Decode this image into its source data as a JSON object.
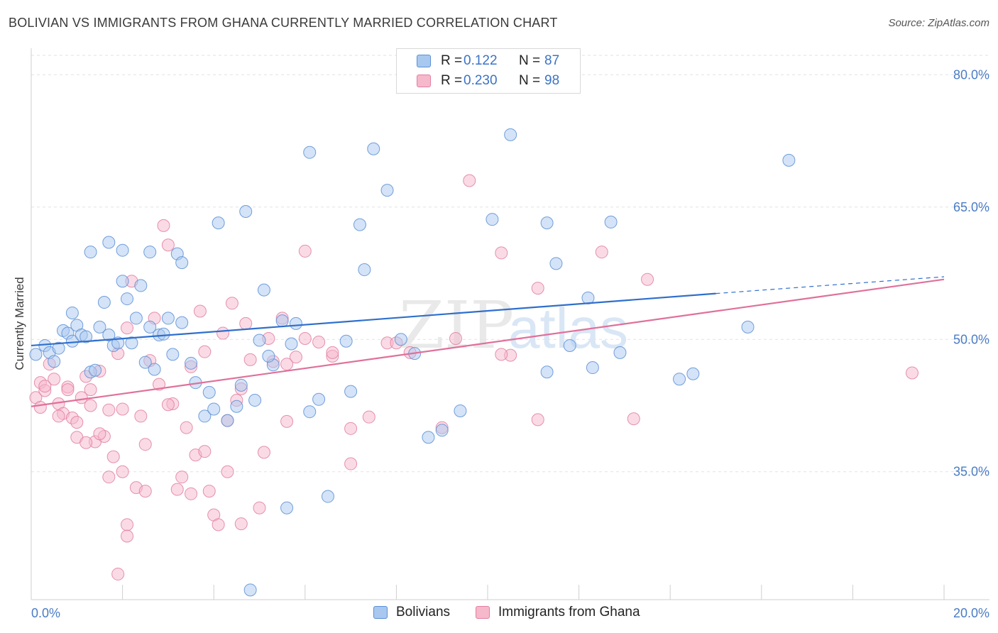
{
  "header": {
    "title": "BOLIVIAN VS IMMIGRANTS FROM GHANA CURRENTLY MARRIED CORRELATION CHART",
    "source": "Source: ZipAtlas.com"
  },
  "watermark": {
    "zip": "ZIP",
    "atlas": "atlas"
  },
  "legend": {
    "rows": [
      {
        "r_label": "R =",
        "r_value": "0.122",
        "n_label": "N =",
        "n_value": "87",
        "color": "#a9c8ef",
        "border": "#5b8fd6"
      },
      {
        "r_label": "R =",
        "r_value": "0.230",
        "n_label": "N =",
        "n_value": "98",
        "color": "#f6b8cb",
        "border": "#e27fa0"
      }
    ]
  },
  "colors": {
    "bolivian_fill": "#a9c8ef",
    "bolivian_stroke": "#5b8fd6",
    "bolivian_line": "#2f6fcc",
    "ghana_fill": "#f6b8cb",
    "ghana_stroke": "#e27fa0",
    "ghana_line": "#e0709a",
    "tick_text": "#4a7cc4",
    "grid": "#e2e2e2"
  },
  "chart_data": {
    "type": "scatter",
    "title": "BOLIVIAN VS IMMIGRANTS FROM GHANA CURRENTLY MARRIED CORRELATION CHART",
    "xlabel": "",
    "ylabel": "Currently Married",
    "xlim": [
      0,
      20
    ],
    "ylim": [
      20.5,
      83
    ],
    "x_tick_labels": [
      "0.0%",
      "20.0%"
    ],
    "x_tick_values": [
      0,
      20
    ],
    "x_minor_ticks": [
      2,
      4,
      6,
      8,
      10,
      12,
      14,
      16,
      18
    ],
    "y_tick_labels": [
      "80.0%",
      "65.0%",
      "50.0%",
      "35.0%"
    ],
    "y_tick_values": [
      80,
      65,
      50,
      35
    ],
    "grid": true,
    "legend_position": "top-center",
    "series": [
      {
        "name": "Bolivians",
        "r": 0.122,
        "n": 87,
        "trend": {
          "x0": 0,
          "y0": 49.3,
          "x1": 15.0,
          "y1": 55.2,
          "dash_to_x": 20,
          "dash_to_y": 57.1
        },
        "points": [
          [
            0.1,
            48.3
          ],
          [
            0.3,
            49.3
          ],
          [
            0.4,
            48.5
          ],
          [
            0.5,
            47.5
          ],
          [
            0.6,
            49.0
          ],
          [
            0.7,
            51.0
          ],
          [
            0.8,
            50.7
          ],
          [
            0.9,
            49.8
          ],
          [
            0.9,
            53.0
          ],
          [
            1.0,
            51.6
          ],
          [
            1.1,
            50.5
          ],
          [
            1.2,
            50.3
          ],
          [
            1.3,
            46.3
          ],
          [
            1.4,
            46.5
          ],
          [
            1.5,
            51.4
          ],
          [
            1.6,
            54.2
          ],
          [
            1.7,
            50.5
          ],
          [
            1.8,
            49.3
          ],
          [
            1.9,
            49.6
          ],
          [
            2.0,
            56.6
          ],
          [
            2.1,
            54.6
          ],
          [
            2.2,
            49.6
          ],
          [
            2.3,
            52.4
          ],
          [
            2.4,
            56.1
          ],
          [
            2.5,
            47.4
          ],
          [
            2.6,
            51.4
          ],
          [
            2.7,
            46.6
          ],
          [
            2.8,
            50.5
          ],
          [
            2.9,
            50.6
          ],
          [
            3.0,
            52.4
          ],
          [
            3.1,
            48.3
          ],
          [
            3.2,
            59.7
          ],
          [
            3.3,
            51.9
          ],
          [
            3.5,
            47.3
          ],
          [
            3.6,
            45.1
          ],
          [
            3.8,
            41.3
          ],
          [
            3.9,
            44.0
          ],
          [
            4.0,
            42.1
          ],
          [
            4.1,
            63.2
          ],
          [
            4.3,
            40.8
          ],
          [
            4.5,
            42.4
          ],
          [
            4.6,
            44.8
          ],
          [
            4.7,
            64.5
          ],
          [
            4.9,
            43.1
          ],
          [
            5.0,
            49.9
          ],
          [
            5.1,
            55.6
          ],
          [
            5.3,
            47.1
          ],
          [
            5.5,
            52.1
          ],
          [
            5.6,
            30.9
          ],
          [
            5.8,
            51.8
          ],
          [
            6.1,
            41.8
          ],
          [
            6.3,
            43.2
          ],
          [
            6.5,
            32.2
          ],
          [
            6.9,
            49.8
          ],
          [
            7.0,
            44.1
          ],
          [
            7.2,
            63.0
          ],
          [
            7.5,
            71.6
          ],
          [
            7.8,
            66.9
          ],
          [
            8.1,
            50.0
          ],
          [
            8.4,
            48.4
          ],
          [
            8.7,
            38.9
          ],
          [
            9.0,
            39.7
          ],
          [
            9.4,
            41.9
          ],
          [
            10.1,
            63.6
          ],
          [
            10.5,
            73.2
          ],
          [
            11.3,
            46.3
          ],
          [
            11.8,
            49.3
          ],
          [
            12.2,
            54.7
          ],
          [
            12.3,
            46.8
          ],
          [
            12.9,
            48.5
          ],
          [
            1.3,
            59.9
          ],
          [
            1.7,
            61.0
          ],
          [
            2.0,
            60.1
          ],
          [
            2.6,
            59.9
          ],
          [
            3.3,
            58.7
          ],
          [
            4.8,
            21.6
          ],
          [
            6.1,
            71.2
          ],
          [
            7.3,
            57.9
          ],
          [
            11.5,
            58.6
          ],
          [
            11.3,
            63.2
          ],
          [
            12.7,
            63.3
          ],
          [
            14.2,
            45.5
          ],
          [
            14.5,
            46.1
          ],
          [
            15.7,
            51.4
          ],
          [
            16.6,
            70.3
          ],
          [
            5.7,
            49.5
          ],
          [
            5.2,
            48.1
          ]
        ]
      },
      {
        "name": "Immigrants from Ghana",
        "r": 0.23,
        "n": 98,
        "trend": {
          "x0": 0,
          "y0": 42.4,
          "x1": 20,
          "y1": 56.8
        },
        "points": [
          [
            0.1,
            43.4
          ],
          [
            0.2,
            45.1
          ],
          [
            0.3,
            44.2
          ],
          [
            0.4,
            47.2
          ],
          [
            0.5,
            45.5
          ],
          [
            0.6,
            42.7
          ],
          [
            0.7,
            41.6
          ],
          [
            0.8,
            44.6
          ],
          [
            0.9,
            41.1
          ],
          [
            1.0,
            38.9
          ],
          [
            1.1,
            43.4
          ],
          [
            1.2,
            45.8
          ],
          [
            1.3,
            44.3
          ],
          [
            1.4,
            38.4
          ],
          [
            1.5,
            46.4
          ],
          [
            1.6,
            39.0
          ],
          [
            1.7,
            42.0
          ],
          [
            1.8,
            36.7
          ],
          [
            1.9,
            48.4
          ],
          [
            2.0,
            42.1
          ],
          [
            2.1,
            51.3
          ],
          [
            2.2,
            56.6
          ],
          [
            2.3,
            33.2
          ],
          [
            2.4,
            41.3
          ],
          [
            2.5,
            38.1
          ],
          [
            2.6,
            47.6
          ],
          [
            2.7,
            52.4
          ],
          [
            2.8,
            44.9
          ],
          [
            2.9,
            62.9
          ],
          [
            3.0,
            60.7
          ],
          [
            3.1,
            42.7
          ],
          [
            3.2,
            33.0
          ],
          [
            3.3,
            34.4
          ],
          [
            3.4,
            40.0
          ],
          [
            3.5,
            46.9
          ],
          [
            3.6,
            36.9
          ],
          [
            3.7,
            53.2
          ],
          [
            3.8,
            48.6
          ],
          [
            3.9,
            32.8
          ],
          [
            4.0,
            30.1
          ],
          [
            4.1,
            29.0
          ],
          [
            4.2,
            50.7
          ],
          [
            4.3,
            40.8
          ],
          [
            4.4,
            54.1
          ],
          [
            4.5,
            43.1
          ],
          [
            4.6,
            44.4
          ],
          [
            4.7,
            51.8
          ],
          [
            4.8,
            47.7
          ],
          [
            5.0,
            30.9
          ],
          [
            5.2,
            50.1
          ],
          [
            5.3,
            47.5
          ],
          [
            5.5,
            52.4
          ],
          [
            5.6,
            40.7
          ],
          [
            5.8,
            48.0
          ],
          [
            6.0,
            60.0
          ],
          [
            6.3,
            49.7
          ],
          [
            6.6,
            48.1
          ],
          [
            7.0,
            39.9
          ],
          [
            7.4,
            41.2
          ],
          [
            7.8,
            49.6
          ],
          [
            8.3,
            48.5
          ],
          [
            9.0,
            40.0
          ],
          [
            9.6,
            68.0
          ],
          [
            10.3,
            59.8
          ],
          [
            10.5,
            48.2
          ],
          [
            11.1,
            55.8
          ],
          [
            12.5,
            59.9
          ],
          [
            13.2,
            41.0
          ],
          [
            0.2,
            42.3
          ],
          [
            0.3,
            44.7
          ],
          [
            0.6,
            41.3
          ],
          [
            0.8,
            44.3
          ],
          [
            1.0,
            40.6
          ],
          [
            1.2,
            38.3
          ],
          [
            1.3,
            42.5
          ],
          [
            1.5,
            39.3
          ],
          [
            1.7,
            34.4
          ],
          [
            2.0,
            35.0
          ],
          [
            2.1,
            29.0
          ],
          [
            2.1,
            27.7
          ],
          [
            1.9,
            23.4
          ],
          [
            2.5,
            32.8
          ],
          [
            3.0,
            42.6
          ],
          [
            3.5,
            32.5
          ],
          [
            3.8,
            37.3
          ],
          [
            4.3,
            35.0
          ],
          [
            4.6,
            29.1
          ],
          [
            5.1,
            37.2
          ],
          [
            5.6,
            47.2
          ],
          [
            6.0,
            50.1
          ],
          [
            6.6,
            48.5
          ],
          [
            7.0,
            35.9
          ],
          [
            8.0,
            49.6
          ],
          [
            9.3,
            50.1
          ],
          [
            10.3,
            48.3
          ],
          [
            11.1,
            40.9
          ],
          [
            13.5,
            56.8
          ],
          [
            19.3,
            46.2
          ]
        ]
      }
    ]
  },
  "bottom_legend": [
    {
      "label": "Bolivians"
    },
    {
      "label": "Immigrants from Ghana"
    }
  ]
}
